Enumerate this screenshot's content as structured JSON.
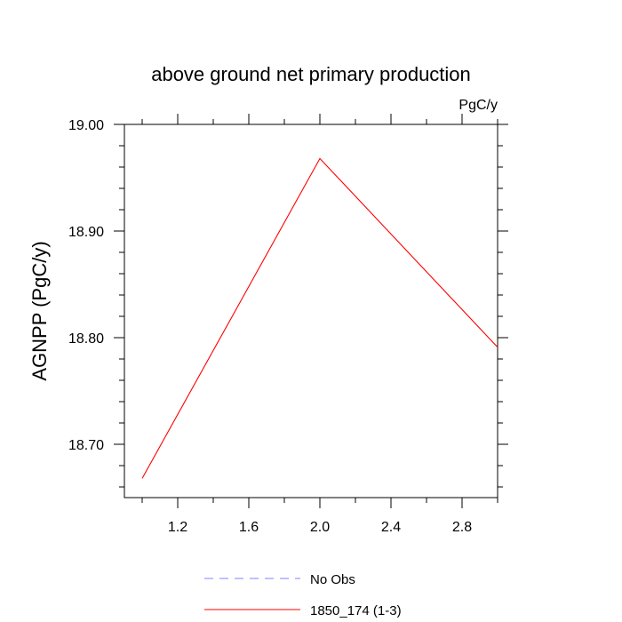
{
  "chart_data": {
    "type": "line",
    "title": "above ground net primary production",
    "units_label": "PgC/y",
    "ylabel": "AGNPP  (PgC/y)",
    "xlabel": "",
    "xlim": [
      0.9,
      3.0
    ],
    "ylim": [
      18.65,
      19.0
    ],
    "x_major_ticks": [
      1.2,
      1.6,
      2.0,
      2.4,
      2.8
    ],
    "x_tick_labels": [
      "1.2",
      "1.6",
      "2.0",
      "2.4",
      "2.8"
    ],
    "x_minor_ticks": [
      1.0,
      1.4,
      1.8,
      2.2,
      2.6,
      3.0
    ],
    "y_major_ticks": [
      18.7,
      18.8,
      18.9,
      19.0
    ],
    "y_tick_labels": [
      "18.70",
      "18.80",
      "18.90",
      "19.00"
    ],
    "y_minor_ticks": [
      18.66,
      18.68,
      18.72,
      18.74,
      18.76,
      18.78,
      18.82,
      18.84,
      18.86,
      18.88,
      18.92,
      18.94,
      18.96,
      18.98
    ],
    "grid": false,
    "legend_position": "bottom",
    "series": [
      {
        "name": "1850_174 (1-3)",
        "color": "#ff0000",
        "dash": "solid",
        "x": [
          1.0,
          2.0,
          3.0
        ],
        "y": [
          18.668,
          18.968,
          18.791
        ]
      }
    ],
    "legend": [
      {
        "label": "No Obs",
        "color": "#8080ff",
        "dash": "dashed"
      },
      {
        "label": "1850_174 (1-3)",
        "color": "#ff0000",
        "dash": "solid"
      }
    ]
  }
}
